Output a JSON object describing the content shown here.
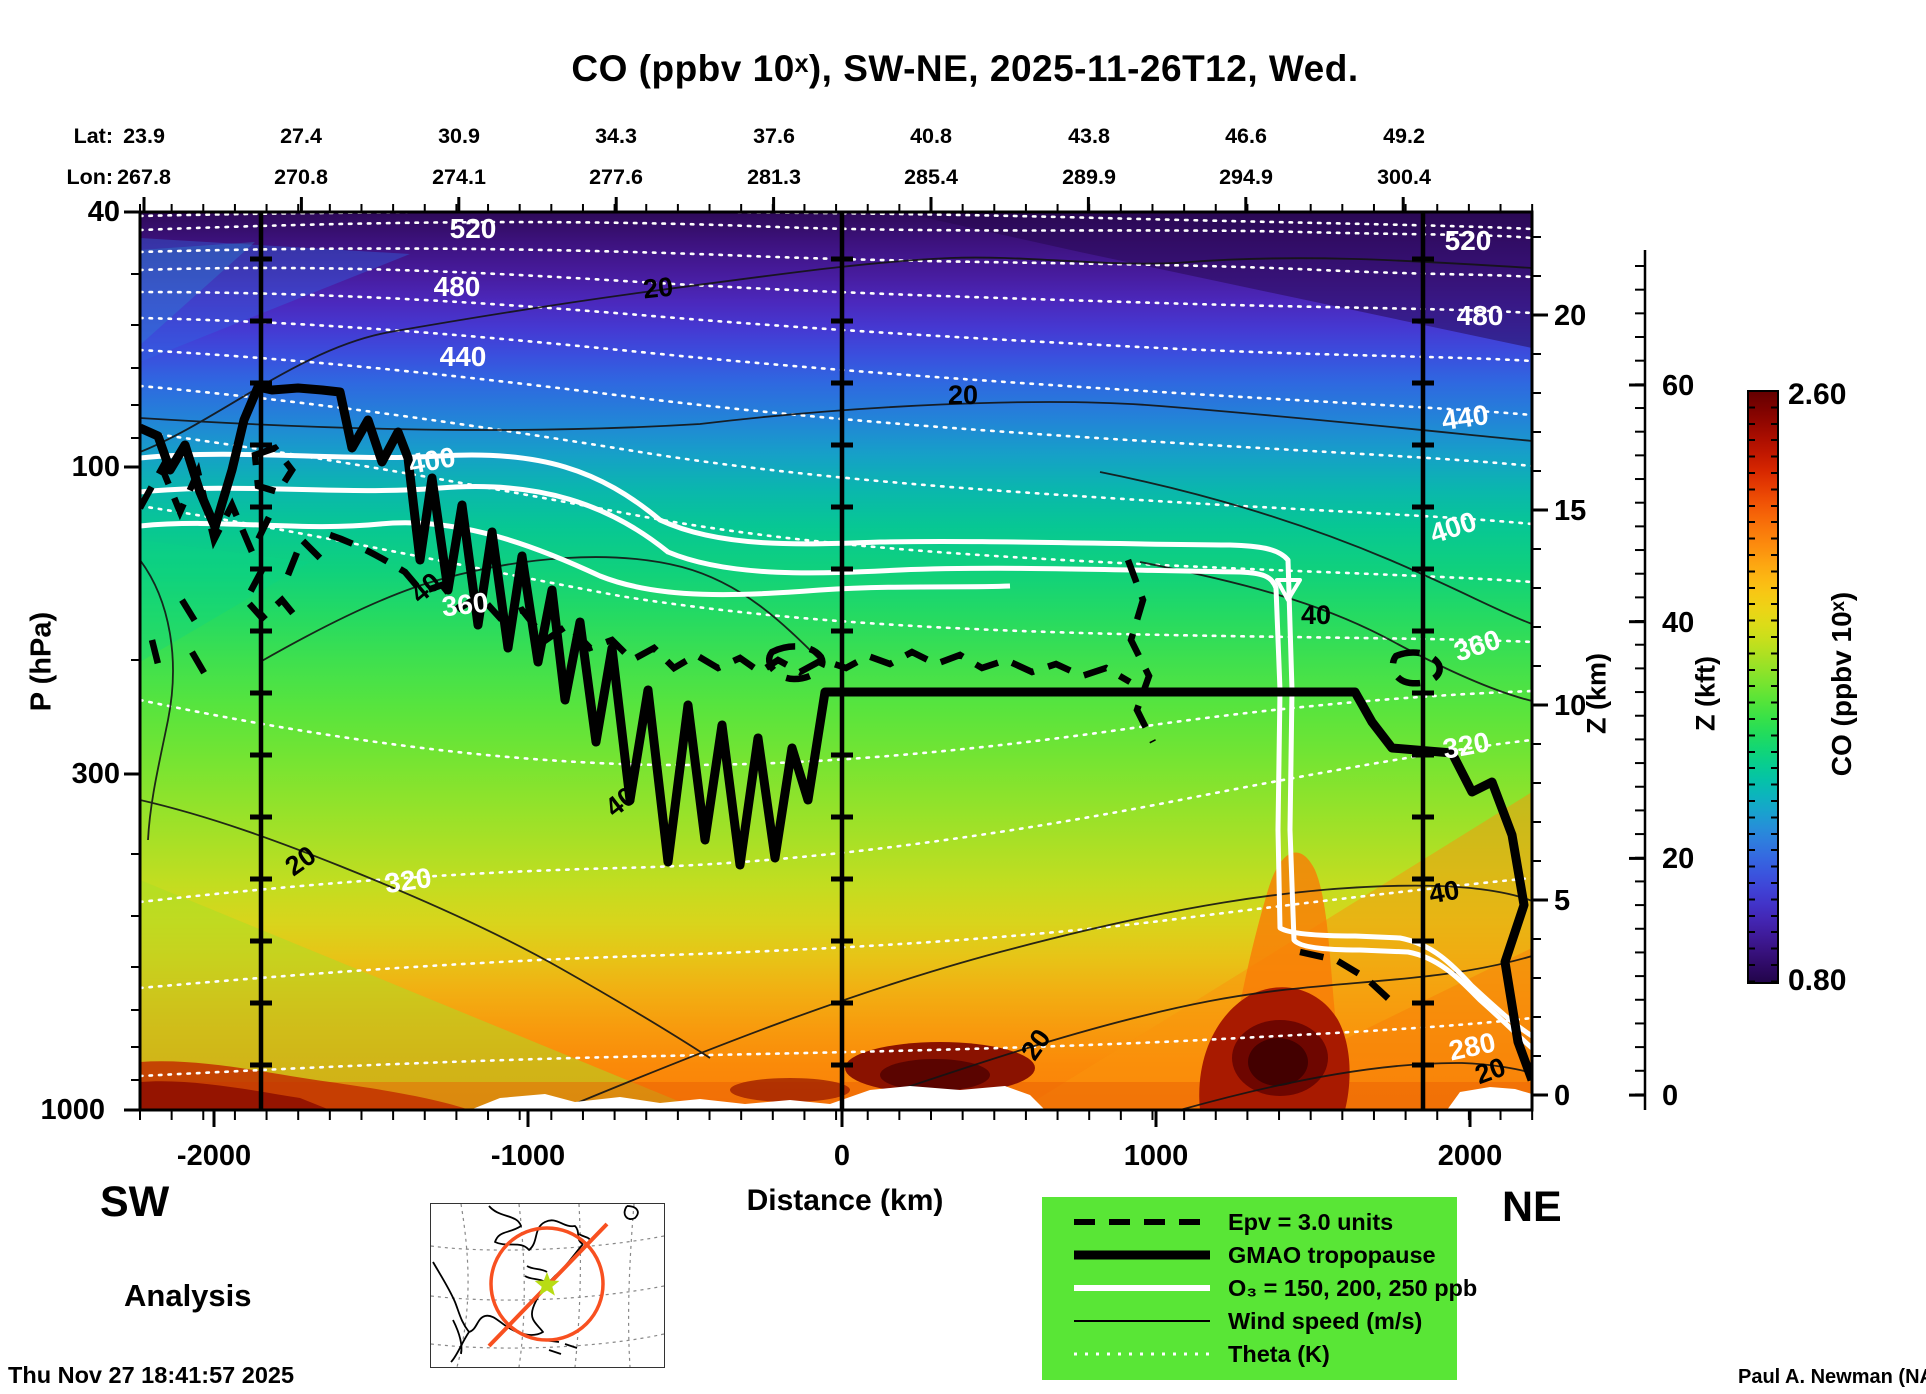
{
  "title": "CO (ppbv 10ˣ), SW-NE, 2025-11-26T12, Wed.",
  "top_axis": {
    "lat_label": "Lat:",
    "lon_label": "Lon:",
    "lat": [
      "23.9",
      "27.4",
      "30.9",
      "34.3",
      "37.6",
      "40.8",
      "43.8",
      "46.6",
      "49.2"
    ],
    "lon": [
      "267.8",
      "270.8",
      "274.1",
      "277.6",
      "281.3",
      "285.4",
      "289.9",
      "294.9",
      "300.4"
    ]
  },
  "y_axis": {
    "label": "P (hPa)",
    "ticks": [
      "40",
      "100",
      "300",
      "1000"
    ]
  },
  "x_axis": {
    "label": "Distance (km)",
    "ticks": [
      "-2000",
      "-1000",
      "0",
      "1000",
      "2000"
    ]
  },
  "z_km_axis": {
    "label": "Z (km)",
    "ticks": [
      "20",
      "15",
      "10",
      "5",
      "0"
    ]
  },
  "z_kft_axis": {
    "label": "Z (kft)",
    "ticks": [
      "60",
      "40",
      "20",
      "0"
    ]
  },
  "colorbar": {
    "label": "CO (ppbv 10ˣ)",
    "max": "2.60",
    "min": "0.80"
  },
  "corners": {
    "sw": "SW",
    "ne": "NE"
  },
  "analysis_label": "Analysis",
  "timestamp": "Thu Nov 27 18:41:57 2025",
  "credit": "Paul A. Newman (NASA",
  "legend": {
    "items": [
      {
        "label": "Epv = 3.0 units"
      },
      {
        "label": "GMAO tropopause"
      },
      {
        "label": "O₃ = 150, 200, 250 ppb"
      },
      {
        "label": "Wind speed (m/s)"
      },
      {
        "label": "Theta (K)"
      }
    ]
  },
  "contour_labels": {
    "theta": [
      {
        "t": "520"
      },
      {
        "t": "480"
      },
      {
        "t": "440"
      },
      {
        "t": "400"
      },
      {
        "t": "360"
      },
      {
        "t": "320"
      },
      {
        "t": "520"
      },
      {
        "t": "480"
      },
      {
        "t": "440"
      },
      {
        "t": "400"
      },
      {
        "t": "360"
      },
      {
        "t": "320"
      },
      {
        "t": "280"
      }
    ],
    "wind": [
      {
        "t": "20"
      },
      {
        "t": "20"
      },
      {
        "t": "20"
      },
      {
        "t": "20"
      },
      {
        "t": "20"
      },
      {
        "t": "40"
      },
      {
        "t": "40"
      },
      {
        "t": "40"
      },
      {
        "t": "40"
      }
    ]
  },
  "chart_data": {
    "type": "heatmap",
    "title": "CO (ppbv 10ˣ), SW-NE, 2025-11-26T12, Wed.",
    "field": "log10 of carbon monoxide mixing ratio (ppbv)",
    "x": {
      "label": "Distance (km)",
      "range": [
        -2240,
        2200
      ],
      "ticks": [
        -2000,
        -1000,
        0,
        1000,
        2000
      ]
    },
    "y": {
      "label": "P (hPa)",
      "scale": "log",
      "range": [
        40,
        1000
      ],
      "ticks": [
        40,
        100,
        300,
        1000
      ]
    },
    "y_right_km": {
      "label": "Z (km)",
      "ticks": [
        20,
        15,
        10,
        5,
        0
      ]
    },
    "y_right_kft": {
      "label": "Z (kft)",
      "ticks": [
        60,
        40,
        20,
        0
      ]
    },
    "colorbar": {
      "label": "CO (ppbv 10ˣ)",
      "min": 0.8,
      "max": 2.6,
      "palette": "dark indigo → purple → blue → cyan → teal → green → yellow-green → yellow → orange → red → dark maroon"
    },
    "cross_section_waypoints": {
      "lat": [
        23.9,
        27.4,
        30.9,
        34.3,
        37.6,
        40.8,
        43.8,
        46.6,
        49.2
      ],
      "lon": [
        267.8,
        270.8,
        274.1,
        277.6,
        281.3,
        285.4,
        289.9,
        294.9,
        300.4
      ]
    },
    "reference_vertical_lines_km": [
      -1850,
      0,
      1850
    ],
    "contour_sets": {
      "theta_K": {
        "style": "white dotted",
        "levels": [
          280,
          300,
          320,
          340,
          360,
          380,
          400,
          420,
          440,
          460,
          480,
          500,
          520,
          540
        ],
        "labeled": [
          280,
          320,
          360,
          400,
          440,
          480,
          520
        ]
      },
      "wind_speed_ms": {
        "style": "thin black",
        "labeled": [
          20,
          40
        ]
      },
      "epv_units": {
        "style": "thick black dashed",
        "level": 3.0
      },
      "o3_ppb": {
        "style": "thick white",
        "levels": [
          150,
          200,
          250
        ]
      },
      "tropopause": {
        "style": "very thick black",
        "name": "GMAO tropopause"
      }
    },
    "approx_vertical_profile_log10_co": [
      {
        "p_hPa": 40,
        "value": 0.95
      },
      {
        "p_hPa": 70,
        "value": 1.15
      },
      {
        "p_hPa": 100,
        "value": 1.45
      },
      {
        "p_hPa": 150,
        "value": 1.62
      },
      {
        "p_hPa": 250,
        "value": 1.8
      },
      {
        "p_hPa": 400,
        "value": 1.95
      },
      {
        "p_hPa": 700,
        "value": 2.15
      },
      {
        "p_hPa": 900,
        "value": 2.3
      },
      {
        "p_hPa": 1000,
        "value": 2.5
      }
    ],
    "features": [
      "tropopause near 100 hPa on SW side, descending in jagged folds mid-section, flat ~230 hPa, dropping to ~700 hPa near NE end",
      "surface CO maxima (≈2.5–2.6, dark maroon) near +1300 km and mid-section near surface",
      "white notches along bottom edge are terrain / below-surface",
      "mode label: Analysis"
    ]
  }
}
